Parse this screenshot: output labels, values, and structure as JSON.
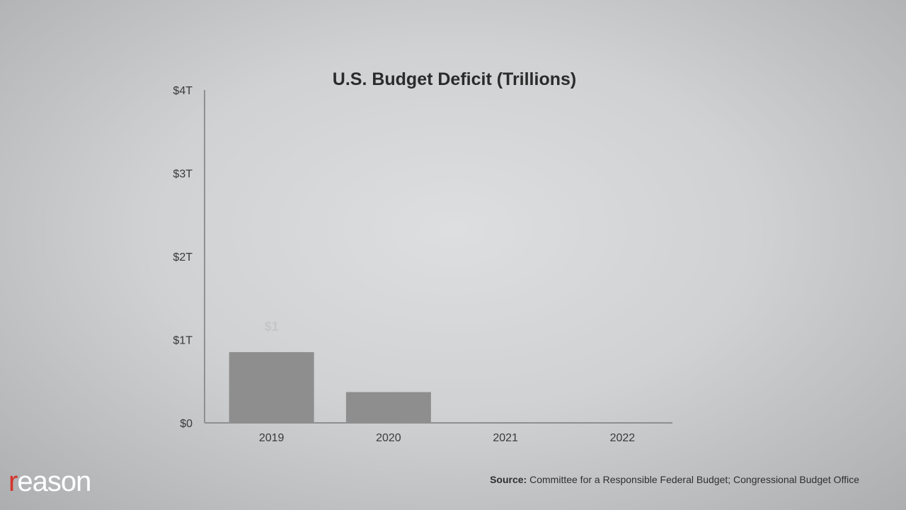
{
  "chart_data": {
    "type": "bar",
    "title": "U.S. Budget Deficit (Trillions)",
    "categories": [
      "2019",
      "2020",
      "2021",
      "2022"
    ],
    "values": [
      0.85,
      0.37,
      0,
      0
    ],
    "y_ticks": [
      "$0",
      "$1T",
      "$2T",
      "$3T",
      "$4T"
    ],
    "ylim": [
      0,
      4
    ],
    "data_labels": [
      "$1",
      "",
      "",
      ""
    ],
    "grid": false,
    "colors": {
      "bar": "#8e8e8e",
      "axis": "#8f8f8f"
    }
  },
  "source": {
    "label": "Source:",
    "text": "Committee for a Responsible Federal Budget; Congressional Budget Office"
  },
  "logo": {
    "first": "r",
    "rest": "eason"
  }
}
